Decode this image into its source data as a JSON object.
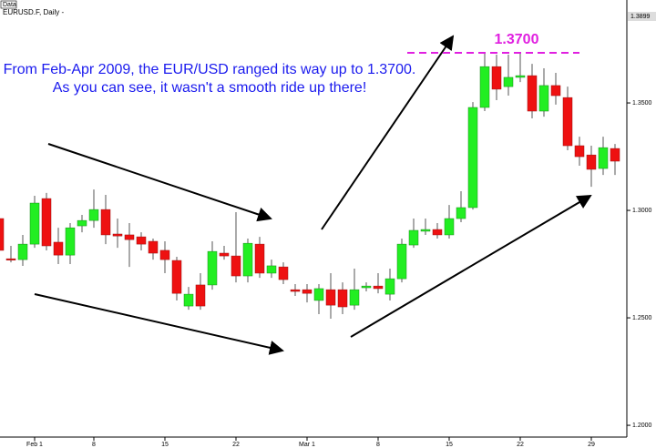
{
  "chart_data": {
    "type": "candlestick",
    "title": "EURUSD.F, Daily -",
    "panel_label": "Data",
    "price_label": "1.3899",
    "annotations": [
      "From Feb-Apr 2009, the EUR/USD ranged its way up to 1.3700.",
      "As you can see, it wasn't a smooth ride up there!"
    ],
    "level_label": "1.3700",
    "up_color": "#22ee22",
    "down_color": "#ee1111",
    "categories": [
      null,
      null,
      null,
      "Feb 1",
      null,
      null,
      null,
      null,
      "8",
      null,
      null,
      null,
      null,
      null,
      "15",
      null,
      null,
      null,
      null,
      null,
      "22",
      null,
      null,
      null,
      null,
      null,
      "Mar 1",
      null,
      null,
      null,
      null,
      null,
      "8",
      null,
      null,
      null,
      null,
      null,
      "15",
      null,
      null,
      null,
      null,
      null,
      "22",
      null,
      null,
      null,
      null,
      null,
      "29",
      null,
      null
    ],
    "open": [
      1.2962,
      1.2775,
      1.2771,
      1.2843,
      1.3055,
      1.2852,
      1.2792,
      1.2928,
      1.2953,
      1.3004,
      1.289,
      1.2886,
      1.2877,
      1.2856,
      1.2814,
      1.2767,
      1.2555,
      1.2653,
      1.2653,
      1.2801,
      1.2788,
      1.2695,
      1.2843,
      1.2708,
      1.2737,
      1.2631,
      1.2631,
      1.2581,
      1.2631,
      1.2631,
      1.2559,
      1.264,
      1.2648,
      1.261,
      1.2682,
      1.2839,
      1.2903,
      1.2911,
      1.2886,
      1.2962,
      1.3013,
      1.3479,
      1.3669,
      1.3576,
      1.3619,
      1.3627,
      1.3462,
      1.3581,
      1.3525,
      1.3301,
      1.3258,
      1.3195,
      1.3288
    ],
    "high": [
      1.3004,
      1.2835,
      1.2886,
      1.3068,
      1.3081,
      1.2919,
      1.2941,
      1.2979,
      1.3097,
      1.3072,
      1.2962,
      1.2941,
      1.2898,
      1.2869,
      1.2856,
      1.2784,
      1.2644,
      1.2708,
      1.2856,
      1.2835,
      1.2992,
      1.2869,
      1.2877,
      1.2771,
      1.2758,
      1.2657,
      1.2657,
      1.2657,
      1.2708,
      1.2665,
      1.2729,
      1.2665,
      1.2708,
      1.2729,
      1.2869,
      1.2962,
      1.2962,
      1.2941,
      1.3025,
      1.3089,
      1.3504,
      1.3733,
      1.3725,
      1.3725,
      1.3733,
      1.3682,
      1.3661,
      1.364,
      1.3576,
      1.3343,
      1.3301,
      1.3343,
      1.3309
    ],
    "low": [
      1.2792,
      1.2758,
      1.2742,
      1.2826,
      1.2814,
      1.275,
      1.275,
      1.2898,
      1.2919,
      1.2843,
      1.2826,
      1.2737,
      1.2814,
      1.2771,
      1.2708,
      1.2581,
      1.2538,
      1.2538,
      1.2631,
      1.2771,
      1.2665,
      1.2665,
      1.2686,
      1.2686,
      1.2657,
      1.2602,
      1.2572,
      1.2517,
      1.2496,
      1.2517,
      1.2538,
      1.2623,
      1.2614,
      1.2581,
      1.2665,
      1.2826,
      1.2886,
      1.2869,
      1.2869,
      1.2945,
      1.3004,
      1.3462,
      1.3513,
      1.3534,
      1.3597,
      1.3428,
      1.3436,
      1.3492,
      1.328,
      1.3208,
      1.311,
      1.3165,
      1.3165
    ],
    "close": [
      1.2814,
      1.2771,
      1.2843,
      1.3034,
      1.2835,
      1.2792,
      1.2919,
      1.2953,
      1.3004,
      1.2886,
      1.2881,
      1.2864,
      1.2843,
      1.2801,
      1.2771,
      1.2614,
      1.261,
      1.2555,
      1.2809,
      1.2788,
      1.2695,
      1.2847,
      1.2708,
      1.2742,
      1.2678,
      1.2623,
      1.2614,
      1.2636,
      1.2559,
      1.2551,
      1.2631,
      1.2648,
      1.2636,
      1.2682,
      1.2843,
      1.2907,
      1.2911,
      1.2886,
      1.2962,
      1.3013,
      1.3479,
      1.3669,
      1.3564,
      1.3619,
      1.3627,
      1.3462,
      1.3581,
      1.3534,
      1.3301,
      1.325,
      1.3191,
      1.3292,
      1.3229
    ],
    "ylim": [
      1.1924,
      1.3979
    ],
    "yticks": [
      {
        "value": 1.2,
        "label": "1.2000"
      },
      {
        "value": 1.25,
        "label": "1.2500"
      },
      {
        "value": 1.3,
        "label": "1.3000"
      },
      {
        "value": 1.35,
        "label": "1.3500"
      }
    ]
  }
}
